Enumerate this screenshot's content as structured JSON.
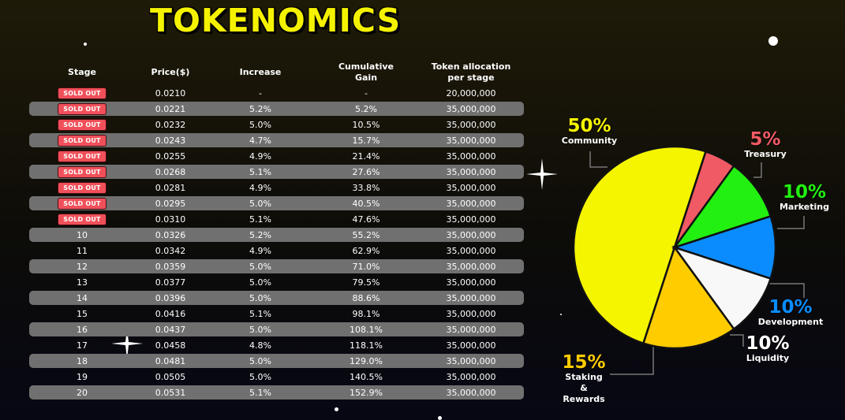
{
  "title": "TOKENOMICS",
  "table": {
    "headers": {
      "stage": "Stage",
      "price": "Price($)",
      "increase": "Increase",
      "cumulative": "Cumulative Gain",
      "allocation": "Token allocation per stage"
    },
    "sold_out_label": "SOLD OUT",
    "rows": [
      {
        "stage": "SOLD OUT",
        "price": "0.0210",
        "increase": "-",
        "cumulative": "-",
        "allocation": "20,000,000",
        "sold": true
      },
      {
        "stage": "SOLD OUT",
        "price": "0.0221",
        "increase": "5.2%",
        "cumulative": "5.2%",
        "allocation": "35,000,000",
        "sold": true
      },
      {
        "stage": "SOLD OUT",
        "price": "0.0232",
        "increase": "5.0%",
        "cumulative": "10.5%",
        "allocation": "35,000,000",
        "sold": true
      },
      {
        "stage": "SOLD OUT",
        "price": "0.0243",
        "increase": "4.7%",
        "cumulative": "15.7%",
        "allocation": "35,000,000",
        "sold": true
      },
      {
        "stage": "SOLD OUT",
        "price": "0.0255",
        "increase": "4.9%",
        "cumulative": "21.4%",
        "allocation": "35,000,000",
        "sold": true
      },
      {
        "stage": "SOLD OUT",
        "price": "0.0268",
        "increase": "5.1%",
        "cumulative": "27.6%",
        "allocation": "35,000,000",
        "sold": true
      },
      {
        "stage": "SOLD OUT",
        "price": "0.0281",
        "increase": "4.9%",
        "cumulative": "33.8%",
        "allocation": "35,000,000",
        "sold": true
      },
      {
        "stage": "SOLD OUT",
        "price": "0.0295",
        "increase": "5.0%",
        "cumulative": "40.5%",
        "allocation": "35,000,000",
        "sold": true
      },
      {
        "stage": "SOLD OUT",
        "price": "0.0310",
        "increase": "5.1%",
        "cumulative": "47.6%",
        "allocation": "35,000,000",
        "sold": true
      },
      {
        "stage": "10",
        "price": "0.0326",
        "increase": "5.2%",
        "cumulative": "55.2%",
        "allocation": "35,000,000",
        "sold": false
      },
      {
        "stage": "11",
        "price": "0.0342",
        "increase": "4.9%",
        "cumulative": "62.9%",
        "allocation": "35,000,000",
        "sold": false
      },
      {
        "stage": "12",
        "price": "0.0359",
        "increase": "5.0%",
        "cumulative": "71.0%",
        "allocation": "35,000,000",
        "sold": false
      },
      {
        "stage": "13",
        "price": "0.0377",
        "increase": "5.0%",
        "cumulative": "79.5%",
        "allocation": "35,000,000",
        "sold": false
      },
      {
        "stage": "14",
        "price": "0.0396",
        "increase": "5.0%",
        "cumulative": "88.6%",
        "allocation": "35,000,000",
        "sold": false
      },
      {
        "stage": "15",
        "price": "0.0416",
        "increase": "5.1%",
        "cumulative": "98.1%",
        "allocation": "35,000,000",
        "sold": false
      },
      {
        "stage": "16",
        "price": "0.0437",
        "increase": "5.0%",
        "cumulative": "108.1%",
        "allocation": "35,000,000",
        "sold": false
      },
      {
        "stage": "17",
        "price": "0.0458",
        "increase": "4.8%",
        "cumulative": "118.1%",
        "allocation": "35,000,000",
        "sold": false
      },
      {
        "stage": "18",
        "price": "0.0481",
        "increase": "5.0%",
        "cumulative": "129.0%",
        "allocation": "35,000,000",
        "sold": false
      },
      {
        "stage": "19",
        "price": "0.0505",
        "increase": "5.0%",
        "cumulative": "140.5%",
        "allocation": "35,000,000",
        "sold": false
      },
      {
        "stage": "20",
        "price": "0.0531",
        "increase": "5.1%",
        "cumulative": "152.9%",
        "allocation": "35,000,000",
        "sold": false
      }
    ]
  },
  "chart_data": {
    "type": "pie",
    "slices": [
      {
        "label": "Community",
        "value": 50,
        "pct_label": "50%",
        "color": "#f5f500"
      },
      {
        "label": "Treasury",
        "value": 5,
        "pct_label": "5%",
        "color": "#f05a64"
      },
      {
        "label": "Marketing",
        "value": 10,
        "pct_label": "10%",
        "color": "#22f010"
      },
      {
        "label": "Development",
        "value": 10,
        "pct_label": "10%",
        "color": "#0a8cff"
      },
      {
        "label": "Liquidity",
        "value": 10,
        "pct_label": "10%",
        "color": "#f8f8f8"
      },
      {
        "label": "Staking & Rewards",
        "value": 15,
        "pct_label": "15%",
        "color": "#ffcc00"
      }
    ],
    "label_colors": {
      "Community": "#f5f500",
      "Treasury": "#f05a64",
      "Marketing": "#22f010",
      "Development": "#0a8cff",
      "Liquidity": "#ffffff",
      "Staking & Rewards": "#ffcc00"
    }
  },
  "colors": {
    "title": "#f5f200",
    "row_shade": "#707070",
    "sold_badge": "#f0505a"
  }
}
